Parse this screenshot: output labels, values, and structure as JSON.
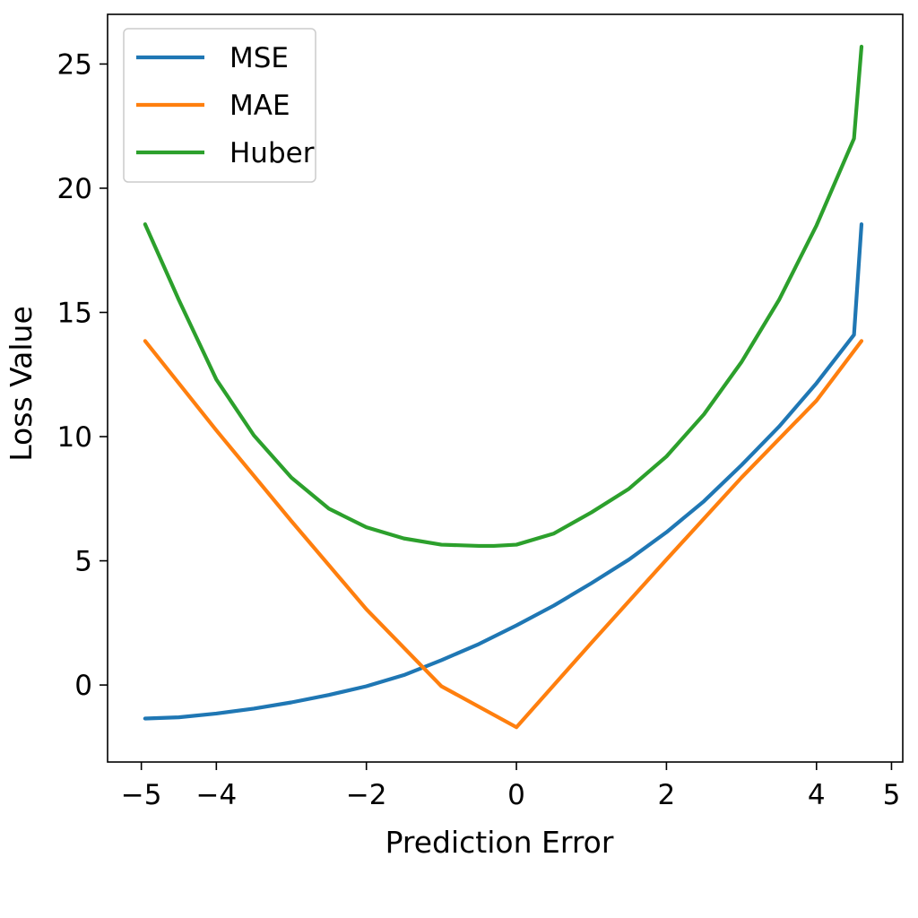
{
  "chart_data": {
    "type": "line",
    "title": "",
    "xlabel": "Prediction Error",
    "ylabel": "Loss Value",
    "xlim": [
      -5.45,
      5.15
    ],
    "ylim": [
      -3.1,
      27.0
    ],
    "grid": false,
    "legend_position": "top-left",
    "x_ticks": [
      {
        "value": -5,
        "label": "−5"
      },
      {
        "value": -4,
        "label": "−4"
      },
      {
        "value": -2,
        "label": "−2"
      },
      {
        "value": 0,
        "label": "0"
      },
      {
        "value": 2,
        "label": "2"
      },
      {
        "value": 4,
        "label": "4"
      },
      {
        "value": 5,
        "label": "5"
      }
    ],
    "y_ticks": [
      {
        "value": 0,
        "label": "0"
      },
      {
        "value": 5,
        "label": "5"
      },
      {
        "value": 10,
        "label": "10"
      },
      {
        "value": 15,
        "label": "15"
      },
      {
        "value": 20,
        "label": "20"
      },
      {
        "value": 25,
        "label": "25"
      }
    ],
    "series": [
      {
        "name": "MSE",
        "color": "#1f77b4",
        "x": [
          -4.95,
          -4.5,
          -4.0,
          -3.5,
          -3.0,
          -2.5,
          -2.0,
          -1.5,
          -1.0,
          -0.5,
          0.0,
          0.5,
          1.0,
          1.5,
          2.0,
          2.5,
          3.0,
          3.5,
          4.0,
          4.5,
          4.6
        ],
        "y": [
          -1.35,
          -1.3,
          -1.15,
          -0.95,
          -0.7,
          -0.4,
          -0.05,
          0.4,
          1.0,
          1.65,
          2.4,
          3.2,
          4.1,
          5.05,
          6.15,
          7.4,
          8.85,
          10.4,
          12.15,
          14.1,
          18.55
        ]
      },
      {
        "name": "MAE",
        "color": "#ff7f0e",
        "x": [
          -4.95,
          -4.0,
          -3.0,
          -2.0,
          -1.0,
          0.0,
          1.0,
          2.0,
          3.0,
          4.0,
          4.6
        ],
        "y": [
          13.85,
          10.25,
          6.6,
          3.05,
          -0.05,
          -1.7,
          1.7,
          5.05,
          8.35,
          11.45,
          13.85
        ]
      },
      {
        "name": "Huber",
        "color": "#2ca02c",
        "x": [
          -4.95,
          -4.5,
          -4.0,
          -3.5,
          -3.0,
          -2.5,
          -2.0,
          -1.5,
          -1.0,
          -0.5,
          -0.3,
          0.0,
          0.5,
          1.0,
          1.5,
          2.0,
          2.5,
          3.0,
          3.5,
          4.0,
          4.5,
          4.6
        ],
        "y": [
          18.55,
          15.5,
          12.3,
          10.05,
          8.35,
          7.1,
          6.35,
          5.9,
          5.65,
          5.6,
          5.6,
          5.65,
          6.1,
          6.95,
          7.9,
          9.2,
          10.9,
          13.0,
          15.5,
          18.5,
          22.0,
          25.7
        ]
      }
    ]
  }
}
